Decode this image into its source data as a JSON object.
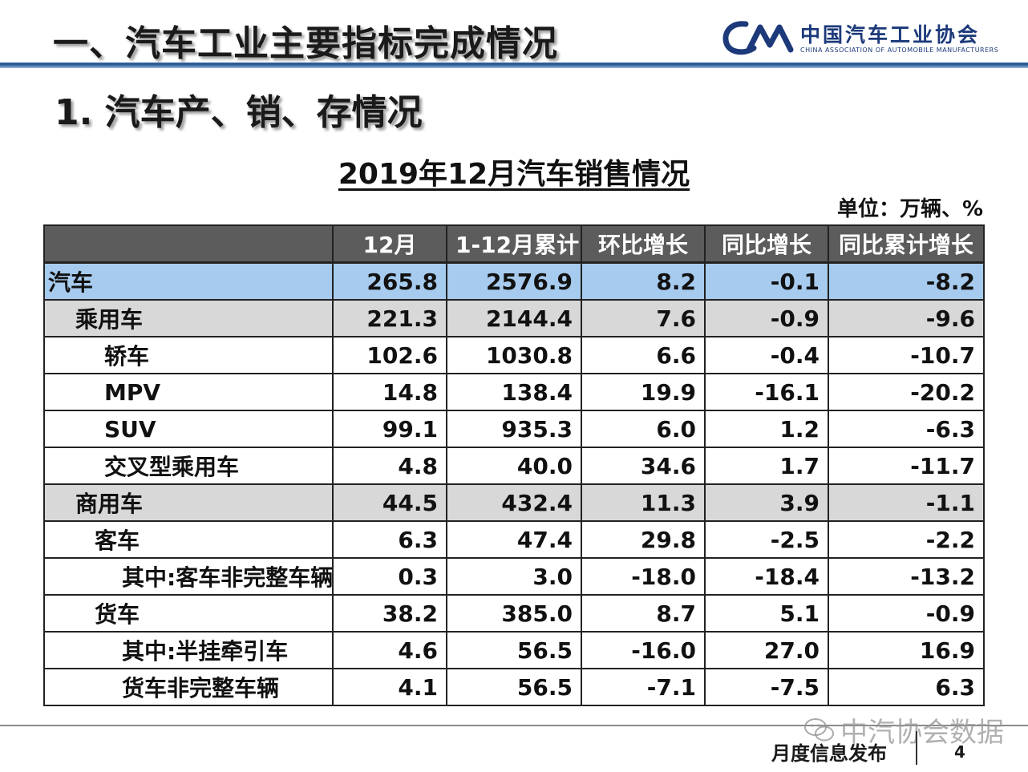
{
  "header": {
    "title": "一、汽车工业主要指标完成情况",
    "logo_cn": "中国汽车工业协会",
    "logo_en": "CHINA ASSOCIATION OF AUTOMOBILE MANUFACTURERS",
    "logo_mark": "CAAM"
  },
  "section_title": "1. 汽车产、销、存情况",
  "table_title": "2019年12月汽车销售情况",
  "unit": "单位：万辆、%",
  "columns": [
    "",
    "12月",
    "1-12月累计",
    "环比增长",
    "同比增长",
    "同比累计增长"
  ],
  "rows": [
    {
      "label": "汽车",
      "values": [
        "265.8",
        "2576.9",
        "8.2",
        "-0.1",
        "-8.2"
      ]
    },
    {
      "label": "乘用车",
      "values": [
        "221.3",
        "2144.4",
        "7.6",
        "-0.9",
        "-9.6"
      ]
    },
    {
      "label": "轿车",
      "values": [
        "102.6",
        "1030.8",
        "6.6",
        "-0.4",
        "-10.7"
      ]
    },
    {
      "label": "MPV",
      "values": [
        "14.8",
        "138.4",
        "19.9",
        "-16.1",
        "-20.2"
      ]
    },
    {
      "label": "SUV",
      "values": [
        "99.1",
        "935.3",
        "6.0",
        "1.2",
        "-6.3"
      ]
    },
    {
      "label": "交叉型乘用车",
      "values": [
        "4.8",
        "40.0",
        "34.6",
        "1.7",
        "-11.7"
      ]
    },
    {
      "label": "商用车",
      "values": [
        "44.5",
        "432.4",
        "11.3",
        "3.9",
        "-1.1"
      ]
    },
    {
      "label": "客车",
      "values": [
        "6.3",
        "47.4",
        "29.8",
        "-2.5",
        "-2.2"
      ]
    },
    {
      "label": "其中:客车非完整车辆",
      "values": [
        "0.3",
        "3.0",
        "-18.0",
        "-18.4",
        "-13.2"
      ]
    },
    {
      "label": "货车",
      "values": [
        "38.2",
        "385.0",
        "8.7",
        "5.1",
        "-0.9"
      ]
    },
    {
      "label": "其中:半挂牵引车",
      "values": [
        "4.6",
        "56.5",
        "-16.0",
        "27.0",
        "16.9"
      ]
    },
    {
      "label": "货车非完整车辆",
      "values": [
        "4.1",
        "56.5",
        "-7.1",
        "-7.5",
        "6.3"
      ]
    }
  ],
  "footer": {
    "text": "月度信息发布",
    "page": "4",
    "watermark": "中汽协会数据"
  },
  "colors": {
    "header_bg": "#5c5c5c",
    "highlight_row": "#a7cbee",
    "subtotal_row": "#d8d8d8",
    "brand_blue": "#1c3a7a",
    "rule_blue": "#2a5d96"
  }
}
